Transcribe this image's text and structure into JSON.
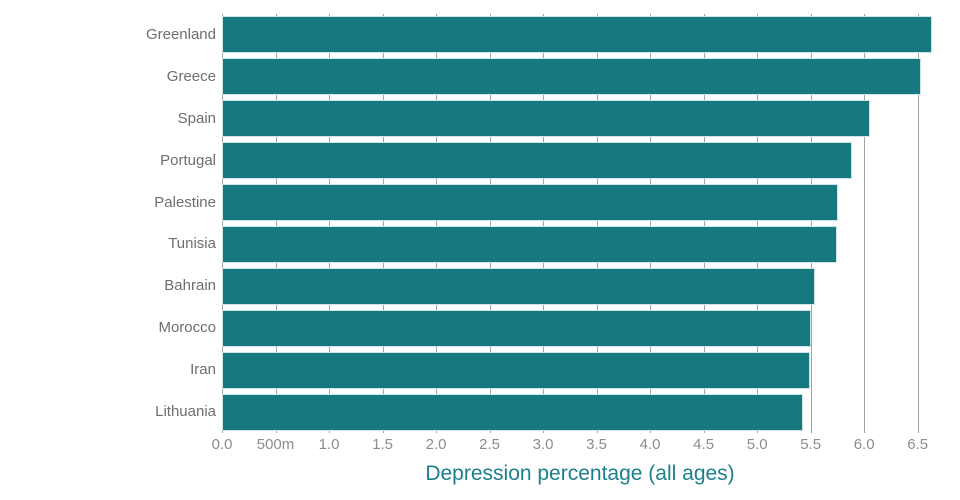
{
  "chart_data": {
    "type": "bar",
    "orientation": "horizontal",
    "title": "",
    "xlabel": "Depression percentage (all ages)",
    "ylabel": "",
    "categories": [
      "Greenland",
      "Greece",
      "Spain",
      "Portugal",
      "Palestine",
      "Tunisia",
      "Bahrain",
      "Morocco",
      "Iran",
      "Lithuania"
    ],
    "values": [
      6.63,
      6.53,
      6.05,
      5.89,
      5.76,
      5.75,
      5.54,
      5.5,
      5.49,
      5.43
    ],
    "xlim": [
      0,
      6.69
    ],
    "x_ticks": [
      0,
      0.5,
      1.0,
      1.5,
      2.0,
      2.5,
      3.0,
      3.5,
      4.0,
      4.5,
      5.0,
      5.5,
      6.0,
      6.5
    ],
    "x_tick_labels": [
      "0.0",
      "500m",
      "1.0",
      "1.5",
      "2.0",
      "2.5",
      "3.0",
      "3.5",
      "4.0",
      "4.5",
      "5.0",
      "5.5",
      "6.0",
      "6.5"
    ],
    "grid": "vertical-only",
    "legend": "none",
    "sort": "descending",
    "colors": {
      "bar_fill": "#16797f",
      "bar_stroke": "#cfe4e9",
      "grid_line": "#a3a3a3",
      "tick_label": "#8c8c8c",
      "category_label": "#6e6e6e",
      "axis_title": "#1b7f8c",
      "background": "#ffffff"
    }
  }
}
